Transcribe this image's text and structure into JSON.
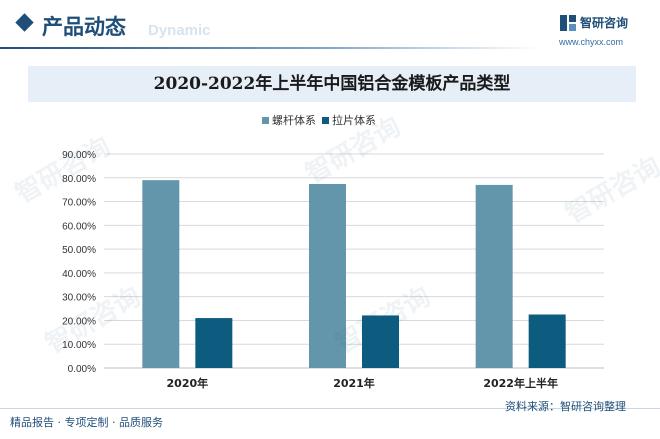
{
  "header": {
    "title": "产品动态",
    "watermark_text": "Dynamic"
  },
  "logo": {
    "name": "智研咨询",
    "url": "www.chyxx.com"
  },
  "footer": {
    "tagline": "精品报告 · 专项定制 · 品质服务",
    "source": "资料来源：智研咨询整理"
  },
  "watermark": "智研咨询",
  "colors": {
    "series1": "#6496ab",
    "series2": "#0d5c80",
    "brand": "#1f4e79"
  },
  "chart_data": {
    "type": "bar",
    "title": "2020-2022年上半年中国铝合金模板产品类型",
    "categories": [
      "2020年",
      "2021年",
      "2022年上半年"
    ],
    "series": [
      {
        "name": "螺杆体系",
        "values": [
          79.0,
          77.4,
          77.0
        ]
      },
      {
        "name": "拉片体系",
        "values": [
          21.0,
          22.1,
          22.5
        ]
      }
    ],
    "ylim": [
      0,
      90
    ],
    "ytick_values": [
      0,
      10,
      20,
      30,
      40,
      50,
      60,
      70,
      80,
      90
    ],
    "ytick_labels": [
      "0.00%",
      "10.00%",
      "20.00%",
      "30.00%",
      "40.00%",
      "50.00%",
      "60.00%",
      "70.00%",
      "80.00%",
      "90.00%"
    ],
    "grid": true,
    "legend_position": "top-center",
    "xlabel": "",
    "ylabel": ""
  }
}
